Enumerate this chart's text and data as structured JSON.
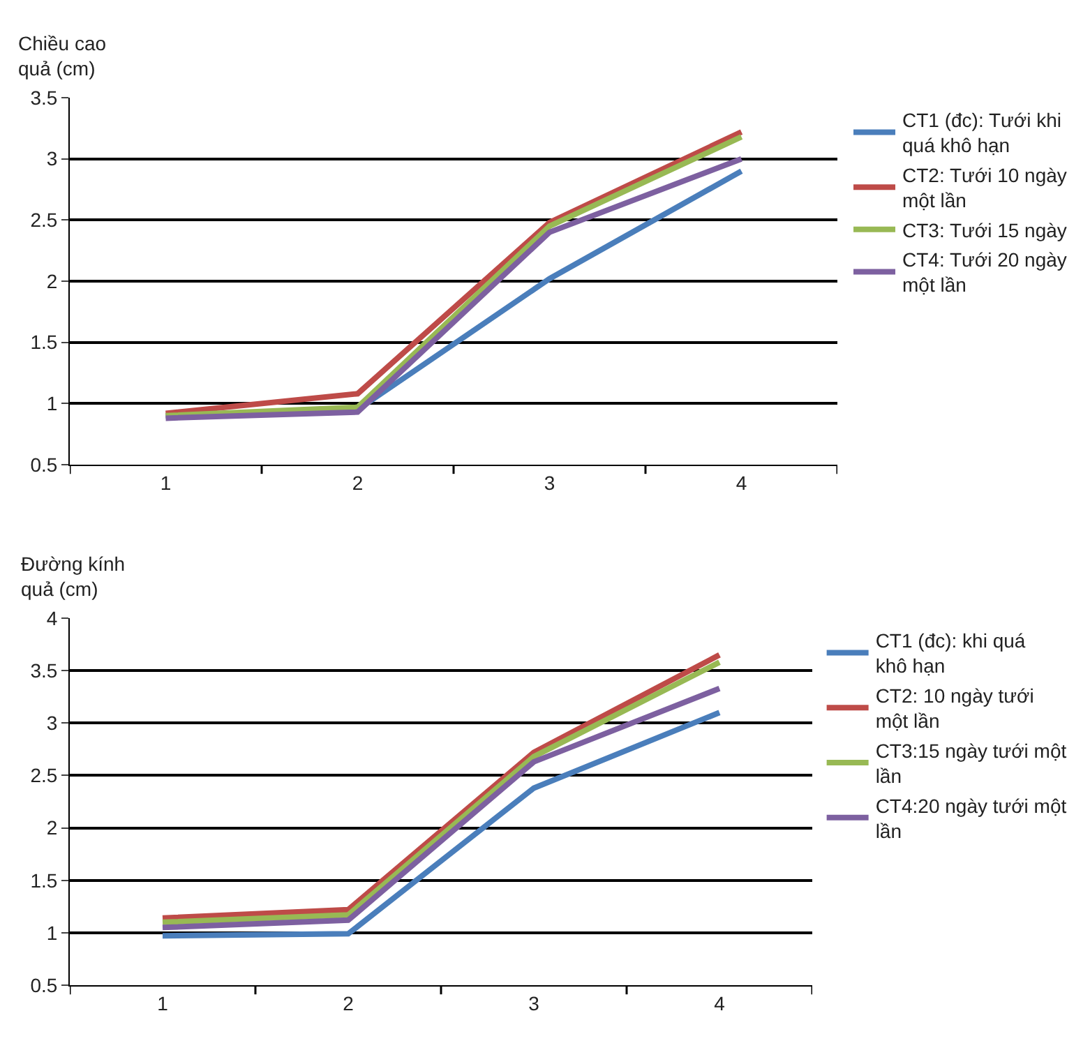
{
  "chart_data": [
    {
      "type": "line",
      "ylabel": "Chiều cao quả (cm)",
      "categories": [
        "1",
        "2",
        "3",
        "4"
      ],
      "ylim": [
        0.5,
        3.5
      ],
      "yticks": [
        0.5,
        1,
        1.5,
        2,
        2.5,
        3,
        3.5
      ],
      "grid": "y",
      "legend": "right",
      "marker": "none",
      "line_style": "solid",
      "series": [
        {
          "name": "CT1 (đc): Tưới khi quá khô hạn",
          "color": "#4a7ebb",
          "values": [
            0.9,
            0.95,
            2.02,
            2.9
          ]
        },
        {
          "name": "CT2: Tưới 10 ngày một lần",
          "color": "#be4b48",
          "values": [
            0.92,
            1.08,
            2.48,
            3.22
          ]
        },
        {
          "name": "CT3: Tưới 15 ngày",
          "color": "#98b954",
          "values": [
            0.9,
            0.97,
            2.45,
            3.18
          ]
        },
        {
          "name": "CT4: Tưới 20 ngày một lần",
          "color": "#7d60a0",
          "values": [
            0.88,
            0.93,
            2.4,
            3.0
          ]
        }
      ]
    },
    {
      "type": "line",
      "ylabel": "Đường kính quả (cm)",
      "categories": [
        "1",
        "2",
        "3",
        "4"
      ],
      "ylim": [
        0.5,
        4
      ],
      "yticks": [
        0.5,
        1,
        1.5,
        2,
        2.5,
        3,
        3.5,
        4
      ],
      "grid": "y",
      "legend": "right",
      "marker": "none",
      "line_style": "solid",
      "series": [
        {
          "name": "CT1 (đc): khi quá khô hạn",
          "color": "#4a7ebb",
          "values": [
            0.97,
            0.99,
            2.38,
            3.1
          ]
        },
        {
          "name": "CT2: 10 ngày tưới một lần",
          "color": "#be4b48",
          "values": [
            1.14,
            1.22,
            2.72,
            3.65
          ]
        },
        {
          "name": "CT3:15 ngày tưới một lần",
          "color": "#98b954",
          "values": [
            1.1,
            1.17,
            2.68,
            3.58
          ]
        },
        {
          "name": "CT4:20 ngày tưới một lần",
          "color": "#7d60a0",
          "values": [
            1.05,
            1.12,
            2.63,
            3.33
          ]
        }
      ]
    }
  ]
}
